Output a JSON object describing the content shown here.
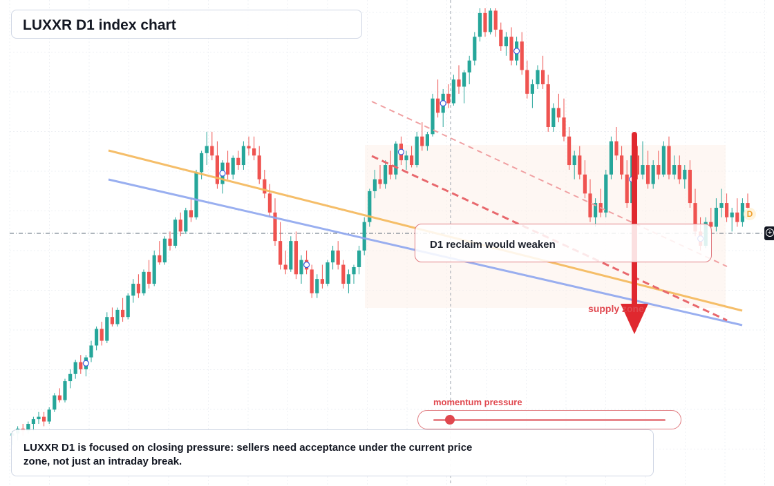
{
  "title": "LUXXR D1 index chart",
  "annotation": "D1 reclaim would weaken",
  "supply_label": "supply zone",
  "momentum": {
    "label": "momentum pressure",
    "level": 0.07
  },
  "summary": "LUXXR D1 is focused on closing pressure: sellers need acceptance under the current price zone, not just an intraday break.",
  "badge": "D",
  "colors": {
    "up": "#26a69a",
    "down": "#ef5350",
    "trend_orange": "#f5b85a",
    "trend_blue": "#8fa7ef",
    "channel_red": "#e8686d",
    "arrow": "#e0282f"
  },
  "icons": {
    "crosshair": "plus-circle-icon",
    "badge": "d-badge-icon"
  },
  "chart_data": {
    "type": "candlestick",
    "title": "LUXXR D1 index chart",
    "grid": true,
    "ylim": [
      0,
      100
    ],
    "series": [
      {
        "name": "",
        "candles": [
          [
            10,
            11,
            8,
            10.5
          ],
          [
            10.5,
            12,
            9,
            11.5
          ],
          [
            11.5,
            12.5,
            10,
            11
          ],
          [
            11,
            13,
            10.5,
            12.5
          ],
          [
            12.5,
            14,
            11,
            13.5
          ],
          [
            13.5,
            15,
            12.5,
            14
          ],
          [
            14,
            15,
            12,
            13
          ],
          [
            13,
            16,
            12.5,
            15.5
          ],
          [
            15.5,
            19,
            15,
            18.5
          ],
          [
            18.5,
            20,
            17,
            17.5
          ],
          [
            17.5,
            22,
            17,
            21.5
          ],
          [
            21.5,
            24,
            20,
            23
          ],
          [
            23,
            26,
            22,
            25.5
          ],
          [
            25.5,
            27,
            23,
            24
          ],
          [
            24,
            27,
            22.5,
            26.5
          ],
          [
            26.5,
            30,
            25.5,
            29
          ],
          [
            29,
            33,
            28,
            32.5
          ],
          [
            32.5,
            34,
            29,
            30
          ],
          [
            30,
            36,
            29.5,
            35
          ],
          [
            35,
            37,
            33,
            33.5
          ],
          [
            33.5,
            37,
            33,
            36.5
          ],
          [
            36.5,
            39,
            34,
            35
          ],
          [
            35,
            40,
            34.5,
            39.5
          ],
          [
            39.5,
            43,
            38,
            42
          ],
          [
            42,
            44,
            39,
            40
          ],
          [
            40,
            45,
            39.5,
            44.5
          ],
          [
            44.5,
            47,
            41,
            42
          ],
          [
            42,
            49,
            41.5,
            48
          ],
          [
            48,
            51,
            46,
            46.5
          ],
          [
            46.5,
            52,
            46,
            51.5
          ],
          [
            51.5,
            53,
            49,
            50
          ],
          [
            50,
            56,
            49.5,
            55.5
          ],
          [
            55.5,
            57,
            52,
            53
          ],
          [
            53,
            58,
            52.5,
            57.5
          ],
          [
            57.5,
            60,
            55,
            56
          ],
          [
            56,
            66,
            55.5,
            65.5
          ],
          [
            65.5,
            70,
            64,
            69.5
          ],
          [
            69.5,
            74,
            67,
            71
          ],
          [
            71,
            74,
            68,
            69
          ],
          [
            69,
            72,
            62,
            63
          ],
          [
            63,
            68,
            61,
            67.5
          ],
          [
            67.5,
            70,
            64,
            65
          ],
          [
            65,
            69,
            64,
            68.5
          ],
          [
            68.5,
            70,
            66,
            67
          ],
          [
            67,
            72,
            66,
            71
          ],
          [
            71,
            73,
            69,
            70.5
          ],
          [
            70.5,
            73,
            68,
            69
          ],
          [
            69,
            71,
            63,
            64
          ],
          [
            64,
            66,
            60,
            61
          ],
          [
            61,
            63,
            56,
            57
          ],
          [
            57,
            60,
            50,
            51
          ],
          [
            51,
            55,
            45,
            46
          ],
          [
            46,
            49,
            44,
            45
          ],
          [
            45,
            52,
            44.5,
            51
          ],
          [
            51,
            53,
            43,
            44
          ],
          [
            44,
            48,
            42,
            47
          ],
          [
            47,
            49,
            44,
            45
          ],
          [
            45,
            46,
            39,
            40
          ],
          [
            40,
            44,
            39,
            43
          ],
          [
            43,
            46,
            41,
            42
          ],
          [
            42,
            47,
            41.5,
            46.5
          ],
          [
            46.5,
            50,
            45,
            49
          ],
          [
            49,
            51,
            45,
            46
          ],
          [
            46,
            47,
            41,
            42
          ],
          [
            42,
            45,
            40,
            44
          ],
          [
            44,
            46,
            42,
            45.5
          ],
          [
            45.5,
            50,
            44,
            49
          ],
          [
            49,
            56,
            48,
            55
          ],
          [
            55,
            62,
            54,
            61.5
          ],
          [
            61.5,
            66,
            60,
            64
          ],
          [
            64,
            67,
            62,
            63
          ],
          [
            63,
            68,
            62,
            67
          ],
          [
            67,
            70,
            64,
            65
          ],
          [
            65,
            72,
            64,
            71.5
          ],
          [
            71.5,
            73,
            67,
            68
          ],
          [
            68,
            70,
            66,
            69
          ],
          [
            69,
            71,
            66.5,
            67
          ],
          [
            67,
            74,
            66.5,
            73
          ],
          [
            73,
            76,
            70,
            71
          ],
          [
            71,
            74,
            70,
            73.5
          ],
          [
            73.5,
            82,
            73,
            81
          ],
          [
            81,
            85,
            77,
            78
          ],
          [
            78,
            83,
            75,
            82
          ],
          [
            82,
            84,
            79,
            80
          ],
          [
            80,
            86,
            79.5,
            85
          ],
          [
            85,
            88,
            82,
            83.5
          ],
          [
            83.5,
            87,
            80,
            86.5
          ],
          [
            86.5,
            90,
            84,
            89
          ],
          [
            89,
            95,
            88,
            94
          ],
          [
            94,
            100,
            93,
            99
          ],
          [
            99,
            100,
            94,
            95
          ],
          [
            95,
            100,
            94.5,
            99.5
          ],
          [
            99.5,
            100,
            94,
            95.5
          ],
          [
            95.5,
            97,
            91,
            92
          ],
          [
            92,
            95,
            90,
            94
          ],
          [
            94,
            96,
            88,
            89
          ],
          [
            89,
            94,
            88,
            93
          ],
          [
            93,
            95,
            86,
            87
          ],
          [
            87,
            89,
            81,
            82
          ],
          [
            82,
            85,
            79,
            84
          ],
          [
            84,
            88,
            83,
            87
          ],
          [
            87,
            90,
            83,
            84
          ],
          [
            84,
            86,
            74,
            75
          ],
          [
            75,
            80,
            74,
            79
          ],
          [
            79,
            82,
            76,
            77
          ],
          [
            77,
            81,
            72,
            73
          ],
          [
            73,
            75,
            66,
            67
          ],
          [
            67,
            70,
            64,
            69
          ],
          [
            69,
            71,
            64,
            65
          ],
          [
            65,
            68,
            60,
            61
          ],
          [
            61,
            64,
            55,
            56
          ],
          [
            56,
            60,
            54,
            59
          ],
          [
            59,
            62,
            56,
            57
          ],
          [
            57,
            66,
            56,
            65
          ],
          [
            65,
            73,
            64,
            72
          ],
          [
            72,
            75,
            68,
            69
          ],
          [
            69,
            71,
            64,
            65
          ],
          [
            65,
            68,
            58,
            59
          ],
          [
            59,
            70,
            58,
            69
          ],
          [
            69,
            71,
            64,
            65
          ],
          [
            65,
            72,
            64,
            67
          ],
          [
            67,
            70,
            62,
            63
          ],
          [
            63,
            68,
            62,
            67
          ],
          [
            67,
            70,
            64,
            65
          ],
          [
            65,
            72,
            64.5,
            71
          ],
          [
            71,
            73,
            64,
            65
          ],
          [
            65,
            69,
            64,
            67
          ],
          [
            67,
            69,
            63,
            64
          ],
          [
            64,
            67,
            62,
            66
          ],
          [
            66,
            68,
            58,
            59
          ],
          [
            59,
            62,
            52,
            53
          ],
          [
            53,
            56,
            49,
            50
          ],
          [
            50,
            56,
            49.5,
            55
          ],
          [
            55,
            58,
            53,
            54
          ],
          [
            54,
            60,
            53,
            58
          ],
          [
            58,
            62,
            56,
            59
          ],
          [
            59,
            61,
            55,
            56
          ],
          [
            56,
            58,
            53,
            57
          ],
          [
            57,
            60,
            54,
            55
          ],
          [
            55,
            60,
            54,
            59
          ],
          [
            59,
            61,
            56,
            58
          ]
        ]
      }
    ],
    "trendlines": [
      {
        "name": "",
        "color": "orange",
        "from": [
          0,
          72
        ],
        "to": [
          136,
          36
        ]
      },
      {
        "name": "",
        "color": "blue",
        "from": [
          0,
          64
        ],
        "to": [
          136,
          30
        ]
      }
    ],
    "markers_index": [
      14,
      40,
      56,
      74,
      82,
      96,
      118,
      131
    ]
  }
}
